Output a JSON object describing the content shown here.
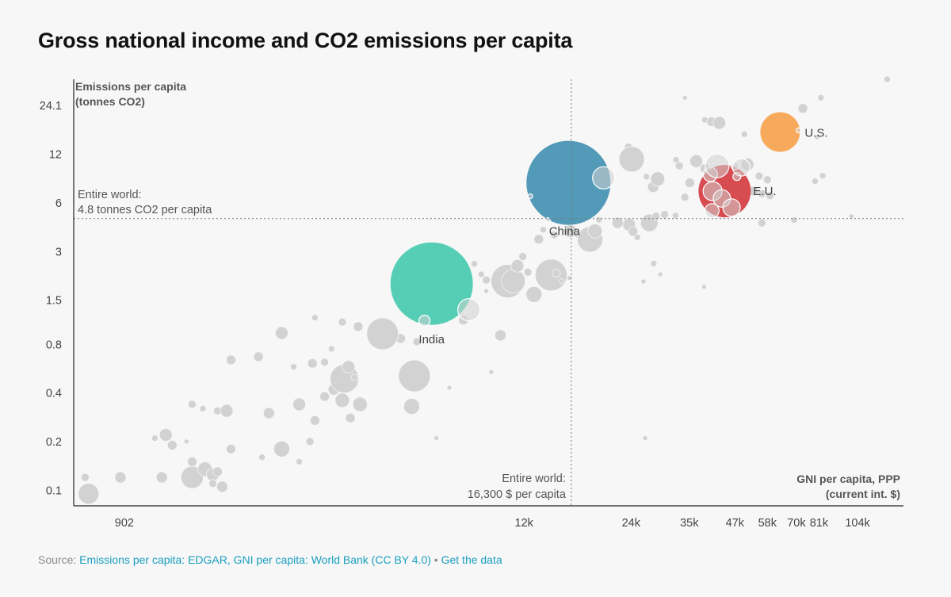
{
  "title": "Gross national income and CO2 emissions per capita",
  "source": {
    "prefix": "Source: ",
    "link_text": "Emissions per capita: EDGAR, GNI per capita: World Bank (CC BY 4.0)",
    "separator": " • ",
    "data_link": "Get the data"
  },
  "chart_data": {
    "type": "scatter",
    "title": "Gross national income and CO2 emissions per capita",
    "xlabel_line1": "GNI per capita, PPP",
    "xlabel_line2": "(current int. $)",
    "ylabel_line1": "Emissions per capita",
    "ylabel_line2": "(tonnes CO2)",
    "x_scale": "log",
    "y_scale": "log",
    "xlim": [
      650,
      140000
    ],
    "ylim": [
      0.08,
      35
    ],
    "x_ticks": [
      {
        "value": 902,
        "label": "902"
      },
      {
        "value": 12000,
        "label": "12k"
      },
      {
        "value": 24000,
        "label": "24k"
      },
      {
        "value": 35000,
        "label": "35k"
      },
      {
        "value": 47000,
        "label": "47k"
      },
      {
        "value": 58000,
        "label": "58k"
      },
      {
        "value": 70000,
        "label": "70k"
      },
      {
        "value": 81000,
        "label": "81k"
      },
      {
        "value": 104000,
        "label": "104k"
      }
    ],
    "y_ticks": [
      {
        "value": 0.1,
        "label": "0.1"
      },
      {
        "value": 0.2,
        "label": "0.2"
      },
      {
        "value": 0.4,
        "label": "0.4"
      },
      {
        "value": 0.8,
        "label": "0.8"
      },
      {
        "value": 1.5,
        "label": "1.5"
      },
      {
        "value": 3,
        "label": "3"
      },
      {
        "value": 6,
        "label": "6"
      },
      {
        "value": 12,
        "label": "12"
      },
      {
        "value": 24.1,
        "label": "24.1"
      }
    ],
    "reference_lines": {
      "world_emissions": {
        "value": 4.8,
        "label_line1": "Entire world:",
        "label_line2": "4.8 tonnes CO2 per capita"
      },
      "world_gni": {
        "value": 16300,
        "label_line1": "Entire world:",
        "label_line2": "16,300 $ per capita"
      }
    },
    "highlighted": [
      {
        "name": "China",
        "gni": 16000,
        "emissions": 8.0,
        "r": 53,
        "color": "#3f8fb0"
      },
      {
        "name": "India",
        "gni": 6600,
        "emissions": 1.9,
        "r": 52,
        "color": "#43c9ad"
      },
      {
        "name": "E.U.",
        "gni": 44000,
        "emissions": 7.1,
        "r": 33,
        "color": "#d3393e"
      },
      {
        "name": "U.S.",
        "gni": 63000,
        "emissions": 16.5,
        "r": 25,
        "color": "#f7a14a"
      }
    ],
    "countries": [
      [
        716,
        0.095,
        13
      ],
      [
        700,
        0.12,
        5
      ],
      [
        880,
        0.12,
        7
      ],
      [
        1150,
        0.12,
        7
      ],
      [
        1400,
        0.12,
        14
      ],
      [
        1520,
        0.135,
        9
      ],
      [
        1600,
        0.125,
        8
      ],
      [
        1700,
        0.105,
        7
      ],
      [
        1650,
        0.13,
        6
      ],
      [
        1600,
        0.11,
        5
      ],
      [
        1230,
        0.19,
        6
      ],
      [
        1100,
        0.21,
        4
      ],
      [
        1180,
        0.22,
        8
      ],
      [
        1350,
        0.2,
        3
      ],
      [
        1400,
        0.15,
        6
      ],
      [
        1800,
        0.18,
        6
      ],
      [
        2200,
        0.16,
        4
      ],
      [
        2500,
        0.18,
        10
      ],
      [
        2800,
        0.15,
        4
      ],
      [
        3000,
        0.2,
        5
      ],
      [
        1400,
        0.34,
        5
      ],
      [
        1500,
        0.32,
        4
      ],
      [
        1650,
        0.31,
        5
      ],
      [
        1750,
        0.31,
        8
      ],
      [
        2300,
        0.3,
        7
      ],
      [
        2800,
        0.34,
        8
      ],
      [
        3100,
        0.27,
        6
      ],
      [
        3300,
        0.38,
        6
      ],
      [
        3700,
        0.36,
        9
      ],
      [
        3900,
        0.28,
        6
      ],
      [
        1800,
        0.64,
        6
      ],
      [
        2150,
        0.67,
        6
      ],
      [
        2700,
        0.58,
        4
      ],
      [
        3050,
        0.61,
        6
      ],
      [
        3300,
        0.62,
        5
      ],
      [
        3450,
        0.75,
        4
      ],
      [
        3500,
        0.42,
        7
      ],
      [
        3650,
        0.45,
        4
      ],
      [
        3750,
        0.49,
        18
      ],
      [
        3850,
        0.58,
        8
      ],
      [
        4000,
        0.5,
        4
      ],
      [
        4150,
        0.34,
        9
      ],
      [
        5900,
        0.51,
        20
      ],
      [
        5800,
        0.33,
        10
      ],
      [
        5100,
        0.88,
        5
      ],
      [
        5400,
        0.87,
        6
      ],
      [
        6000,
        0.83,
        5
      ],
      [
        2500,
        0.94,
        8
      ],
      [
        3100,
        1.17,
        4
      ],
      [
        3700,
        1.1,
        5
      ],
      [
        4100,
        1.03,
        6
      ],
      [
        4800,
        0.93,
        20
      ],
      [
        6300,
        1.12,
        7
      ],
      [
        7400,
        0.43,
        3
      ],
      [
        6800,
        0.21,
        3
      ],
      [
        8100,
        1.13,
        6
      ],
      [
        8400,
        1.31,
        14
      ],
      [
        9400,
        1.71,
        3
      ],
      [
        8700,
        2.52,
        4
      ],
      [
        9100,
        2.17,
        4
      ],
      [
        9400,
        2.0,
        5
      ],
      [
        9700,
        0.54,
        3
      ],
      [
        10300,
        0.91,
        7
      ],
      [
        10800,
        1.97,
        21
      ],
      [
        11200,
        1.97,
        15
      ],
      [
        11500,
        2.45,
        8
      ],
      [
        12300,
        2.24,
        5
      ],
      [
        11900,
        2.8,
        5
      ],
      [
        12800,
        1.63,
        10
      ],
      [
        14300,
        2.15,
        20
      ],
      [
        14800,
        2.2,
        5
      ],
      [
        15300,
        1.97,
        3
      ],
      [
        16100,
        2.06,
        3
      ],
      [
        12500,
        6.6,
        3
      ],
      [
        13200,
        3.58,
        6
      ],
      [
        13600,
        4.1,
        4
      ],
      [
        14600,
        3.81,
        5
      ],
      [
        14000,
        4.7,
        3
      ],
      [
        16200,
        4.02,
        8
      ],
      [
        17000,
        3.81,
        4
      ],
      [
        17500,
        3.86,
        5
      ],
      [
        18400,
        3.57,
        16
      ],
      [
        19000,
        4.02,
        9
      ],
      [
        19500,
        4.72,
        4
      ],
      [
        20100,
        8.59,
        14
      ],
      [
        22000,
        4.52,
        7
      ],
      [
        23700,
        4.4,
        8
      ],
      [
        24300,
        4.0,
        6
      ],
      [
        25000,
        3.68,
        4
      ],
      [
        27000,
        4.52,
        11
      ],
      [
        28200,
        4.97,
        5
      ],
      [
        27700,
        7.54,
        7
      ],
      [
        28500,
        8.45,
        9
      ],
      [
        26500,
        8.73,
        4
      ],
      [
        29000,
        2.17,
        3
      ],
      [
        27800,
        2.53,
        4
      ],
      [
        26000,
        1.96,
        3
      ],
      [
        24000,
        12.3,
        8
      ],
      [
        23600,
        13.3,
        5
      ],
      [
        24100,
        11.2,
        16
      ],
      [
        26300,
        0.21,
        3
      ],
      [
        29800,
        5.09,
        5
      ],
      [
        32000,
        5.02,
        4
      ],
      [
        34000,
        6.52,
        5
      ],
      [
        32100,
        11.1,
        4
      ],
      [
        32800,
        10.2,
        5
      ],
      [
        35100,
        8.0,
        6
      ],
      [
        36600,
        10.9,
        8
      ],
      [
        38700,
        9.79,
        6
      ],
      [
        40100,
        9.03,
        9
      ],
      [
        41900,
        10.2,
        15
      ],
      [
        34000,
        26.9,
        3
      ],
      [
        38700,
        19.6,
        4
      ],
      [
        40400,
        19.1,
        6
      ],
      [
        42500,
        18.8,
        8
      ],
      [
        47000,
        10.2,
        5
      ],
      [
        47600,
        8.74,
        5
      ],
      [
        49000,
        9.97,
        11
      ],
      [
        51000,
        10.4,
        8
      ],
      [
        50000,
        16.0,
        4
      ],
      [
        53000,
        7.1,
        6
      ],
      [
        55000,
        8.81,
        5
      ],
      [
        58000,
        8.36,
        5
      ],
      [
        56000,
        6.84,
        5
      ],
      [
        59000,
        6.67,
        5
      ],
      [
        56000,
        4.51,
        5
      ],
      [
        69000,
        4.7,
        4
      ],
      [
        71000,
        16.9,
        3
      ],
      [
        73000,
        23.1,
        6
      ],
      [
        80000,
        15.3,
        3
      ],
      [
        82000,
        26.9,
        4
      ],
      [
        83000,
        8.84,
        4
      ],
      [
        79000,
        8.17,
        4
      ],
      [
        100000,
        4.97,
        3
      ],
      [
        126000,
        35.0,
        4
      ],
      [
        40700,
        7.1,
        12
      ],
      [
        43200,
        6.4,
        11
      ],
      [
        46000,
        5.62,
        11
      ],
      [
        38500,
        1.82,
        3
      ],
      [
        40500,
        5.37,
        9
      ]
    ]
  }
}
